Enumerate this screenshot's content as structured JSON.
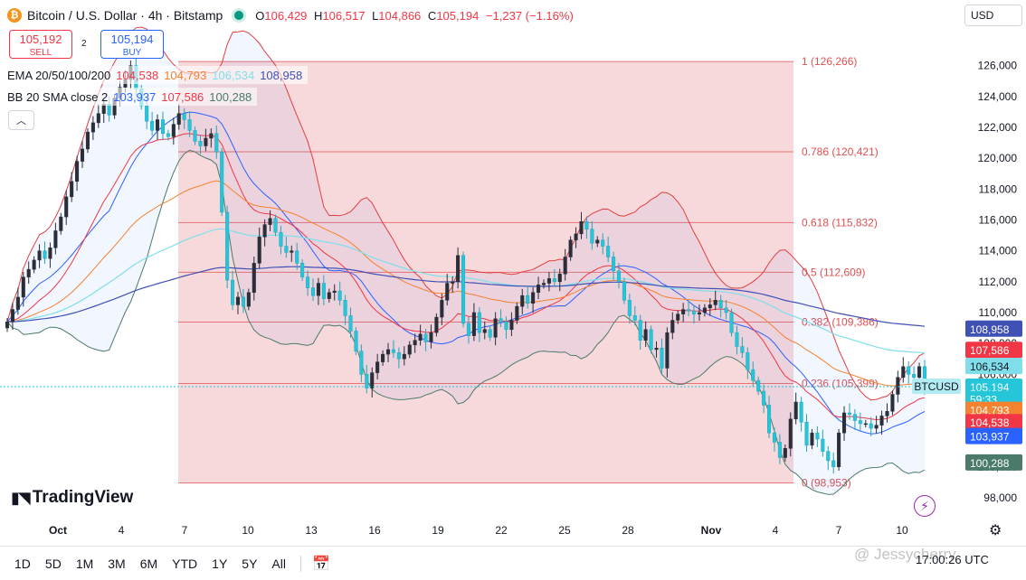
{
  "header": {
    "symbol_icon": "bitcoin-icon",
    "title": "Bitcoin / U.S. Dollar · 4h · Bitstamp",
    "ohlc": {
      "o_label": "O",
      "o": "106,429",
      "h_label": "H",
      "h": "106,517",
      "l_label": "L",
      "l": "104,866",
      "c_label": "C",
      "c": "105,194",
      "change": "−1,237 (−1.16%)"
    }
  },
  "trade": {
    "sell_price": "105,192",
    "sell_label": "SELL",
    "buy_price": "105,194",
    "buy_label": "BUY",
    "spread": "2"
  },
  "indicators": {
    "ema": {
      "name": "EMA 20/50/100/200",
      "v20": "104,538",
      "v50": "104,793",
      "v100": "106,534",
      "v200": "108,958"
    },
    "bb": {
      "name": "BB 20 SMA close 2",
      "basis": "103,937",
      "upper": "107,586",
      "lower": "100,288"
    }
  },
  "currency": "USD",
  "logo_text": "TradingView",
  "timeframes": [
    "1D",
    "5D",
    "1M",
    "3M",
    "6M",
    "YTD",
    "1Y",
    "5Y",
    "All"
  ],
  "clock": "17:00:26 UTC",
  "watermark": "@ Jessycherry",
  "colors": {
    "up": "#089981",
    "down": "#f23645",
    "candle_up_fill": "#ffffff",
    "ema20": "#f23645",
    "ema50": "#f5822e",
    "ema100": "#80deea",
    "ema200": "#3f51b5",
    "bb_upper": "#e04040",
    "bb_basis": "#2962ff",
    "bb_lower": "#4a7a6a",
    "fib_zone": "#f6cccf",
    "fib_line": "#e57373"
  },
  "chart_data": {
    "type": "candlestick",
    "x_ticks": [
      "Oct",
      "4",
      "7",
      "10",
      "13",
      "16",
      "19",
      "22",
      "25",
      "28",
      "Nov",
      "4",
      "7",
      "10"
    ],
    "y_ticks": [
      98000,
      100000,
      102000,
      104000,
      106000,
      108000,
      110000,
      112000,
      114000,
      116000,
      118000,
      120000,
      122000,
      124000,
      126000
    ],
    "ylim": [
      97000,
      128500
    ],
    "fib_levels": [
      {
        "label": "1 (126,266)",
        "value": 126266
      },
      {
        "label": "0.786 (120,421)",
        "value": 120421
      },
      {
        "label": "0.618 (115,832)",
        "value": 115832
      },
      {
        "label": "0.5 (112,609)",
        "value": 112609
      },
      {
        "label": "0.382 (109,386)",
        "value": 109386
      },
      {
        "label": "0.236 (105,399)",
        "value": 105399
      },
      {
        "label": "0 (98,953)",
        "value": 98953
      }
    ],
    "price_tags": [
      {
        "label": "108,958",
        "value": 108958,
        "color": "#3f51b5"
      },
      {
        "label": "107,586",
        "value": 107586,
        "color": "#f23645"
      },
      {
        "label": "106,534",
        "value": 106534,
        "color": "#80deea"
      },
      {
        "label": "105,194",
        "value": 105194,
        "color": "#26c6da"
      },
      {
        "label": "59:33",
        "value": 104400,
        "color": "#26c6da"
      },
      {
        "label": "104,793",
        "value": 103700,
        "color": "#f5822e"
      },
      {
        "label": "104,538",
        "value": 102900,
        "color": "#f23645"
      },
      {
        "label": "103,937",
        "value": 102000,
        "color": "#2962ff"
      },
      {
        "label": "100,288",
        "value": 100288,
        "color": "#4a7a6a"
      }
    ],
    "last_symbol": "BTCUSD",
    "closes": [
      109400,
      110200,
      111000,
      112300,
      112800,
      113400,
      114000,
      113500,
      114200,
      115300,
      116200,
      117500,
      118500,
      119800,
      120600,
      121700,
      122300,
      122900,
      123500,
      122800,
      123900,
      124600,
      125100,
      126000,
      124500,
      123400,
      122400,
      121800,
      122500,
      121600,
      121400,
      122200,
      122900,
      122500,
      121800,
      121100,
      120800,
      121300,
      121600,
      120400,
      116500,
      112100,
      110500,
      111000,
      110400,
      111300,
      113200,
      114900,
      115700,
      116100,
      115200,
      114300,
      113900,
      114000,
      113200,
      112300,
      111600,
      111100,
      111900,
      110900,
      111300,
      111400,
      110800,
      109800,
      108800,
      107500,
      106000,
      105100,
      106100,
      106800,
      107300,
      107600,
      107400,
      107000,
      107300,
      107900,
      108200,
      108600,
      108100,
      108700,
      109700,
      110800,
      111900,
      112000,
      113700,
      109300,
      108500,
      110000,
      108700,
      108900,
      108400,
      109600,
      109400,
      108900,
      109500,
      110400,
      111100,
      110600,
      111300,
      111800,
      111900,
      112200,
      112000,
      112500,
      113600,
      114700,
      115100,
      115900,
      115400,
      114500,
      114700,
      114300,
      113600,
      112700,
      112000,
      110800,
      109800,
      109500,
      108200,
      108900,
      107600,
      107700,
      106400,
      108700,
      109500,
      109900,
      110200,
      110100,
      109900,
      110000,
      110300,
      110500,
      110800,
      110300,
      110000,
      108700,
      107800,
      107400,
      106300,
      105600,
      104900,
      104000,
      102200,
      101600,
      100600,
      101200,
      103100,
      104200,
      102900,
      101400,
      102200,
      101800,
      101000,
      100400,
      100000,
      102200,
      103500,
      103400,
      103000,
      102800,
      102800,
      102500,
      102700,
      103300,
      103600,
      104700,
      105800,
      106500,
      106000,
      105800,
      106500,
      105194
    ],
    "ema20": [],
    "note": ""
  }
}
